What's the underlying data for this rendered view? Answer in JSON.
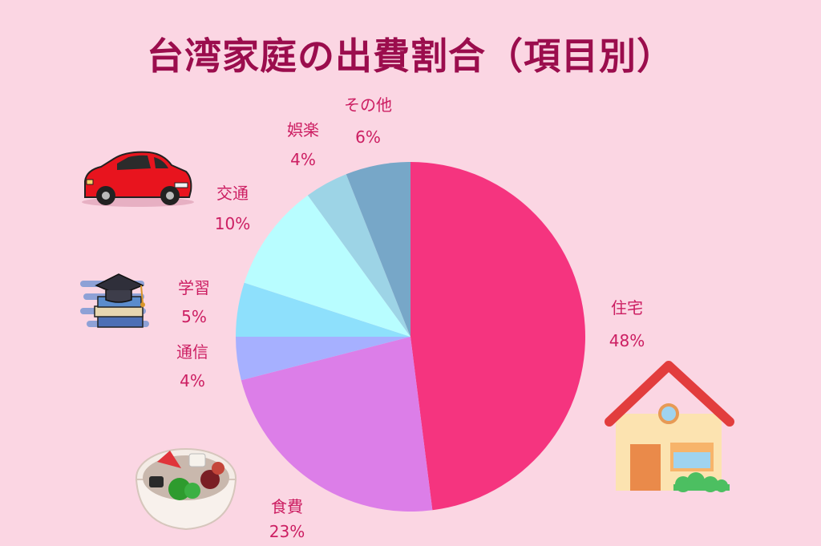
{
  "title": "台湾家庭の出費割合（項目別）",
  "chart_data": {
    "type": "pie",
    "title": "台湾家庭の出費割合（項目別）",
    "start": "12 o'clock",
    "direction": "clockwise",
    "slices": [
      {
        "label": "住宅",
        "value": 48,
        "value_label": "48%",
        "color": "#f5347f"
      },
      {
        "label": "食費",
        "value": 23,
        "value_label": "23%",
        "color": "#dc7ee8"
      },
      {
        "label": "通信",
        "value": 4,
        "value_label": "4%",
        "color": "#a6b0ff"
      },
      {
        "label": "学習",
        "value": 5,
        "value_label": "5%",
        "color": "#8ee0fc"
      },
      {
        "label": "交通",
        "value": 10,
        "value_label": "10%",
        "color": "#b8fdff"
      },
      {
        "label": "娯楽",
        "value": 4,
        "value_label": "4%",
        "color": "#9dd4e6"
      },
      {
        "label": "その他",
        "value": 6,
        "value_label": "6%",
        "color": "#77a7c8"
      }
    ]
  },
  "illustrations": [
    "car-icon",
    "books-graduation-cap-icon",
    "food-bowl-icon",
    "house-icon"
  ]
}
